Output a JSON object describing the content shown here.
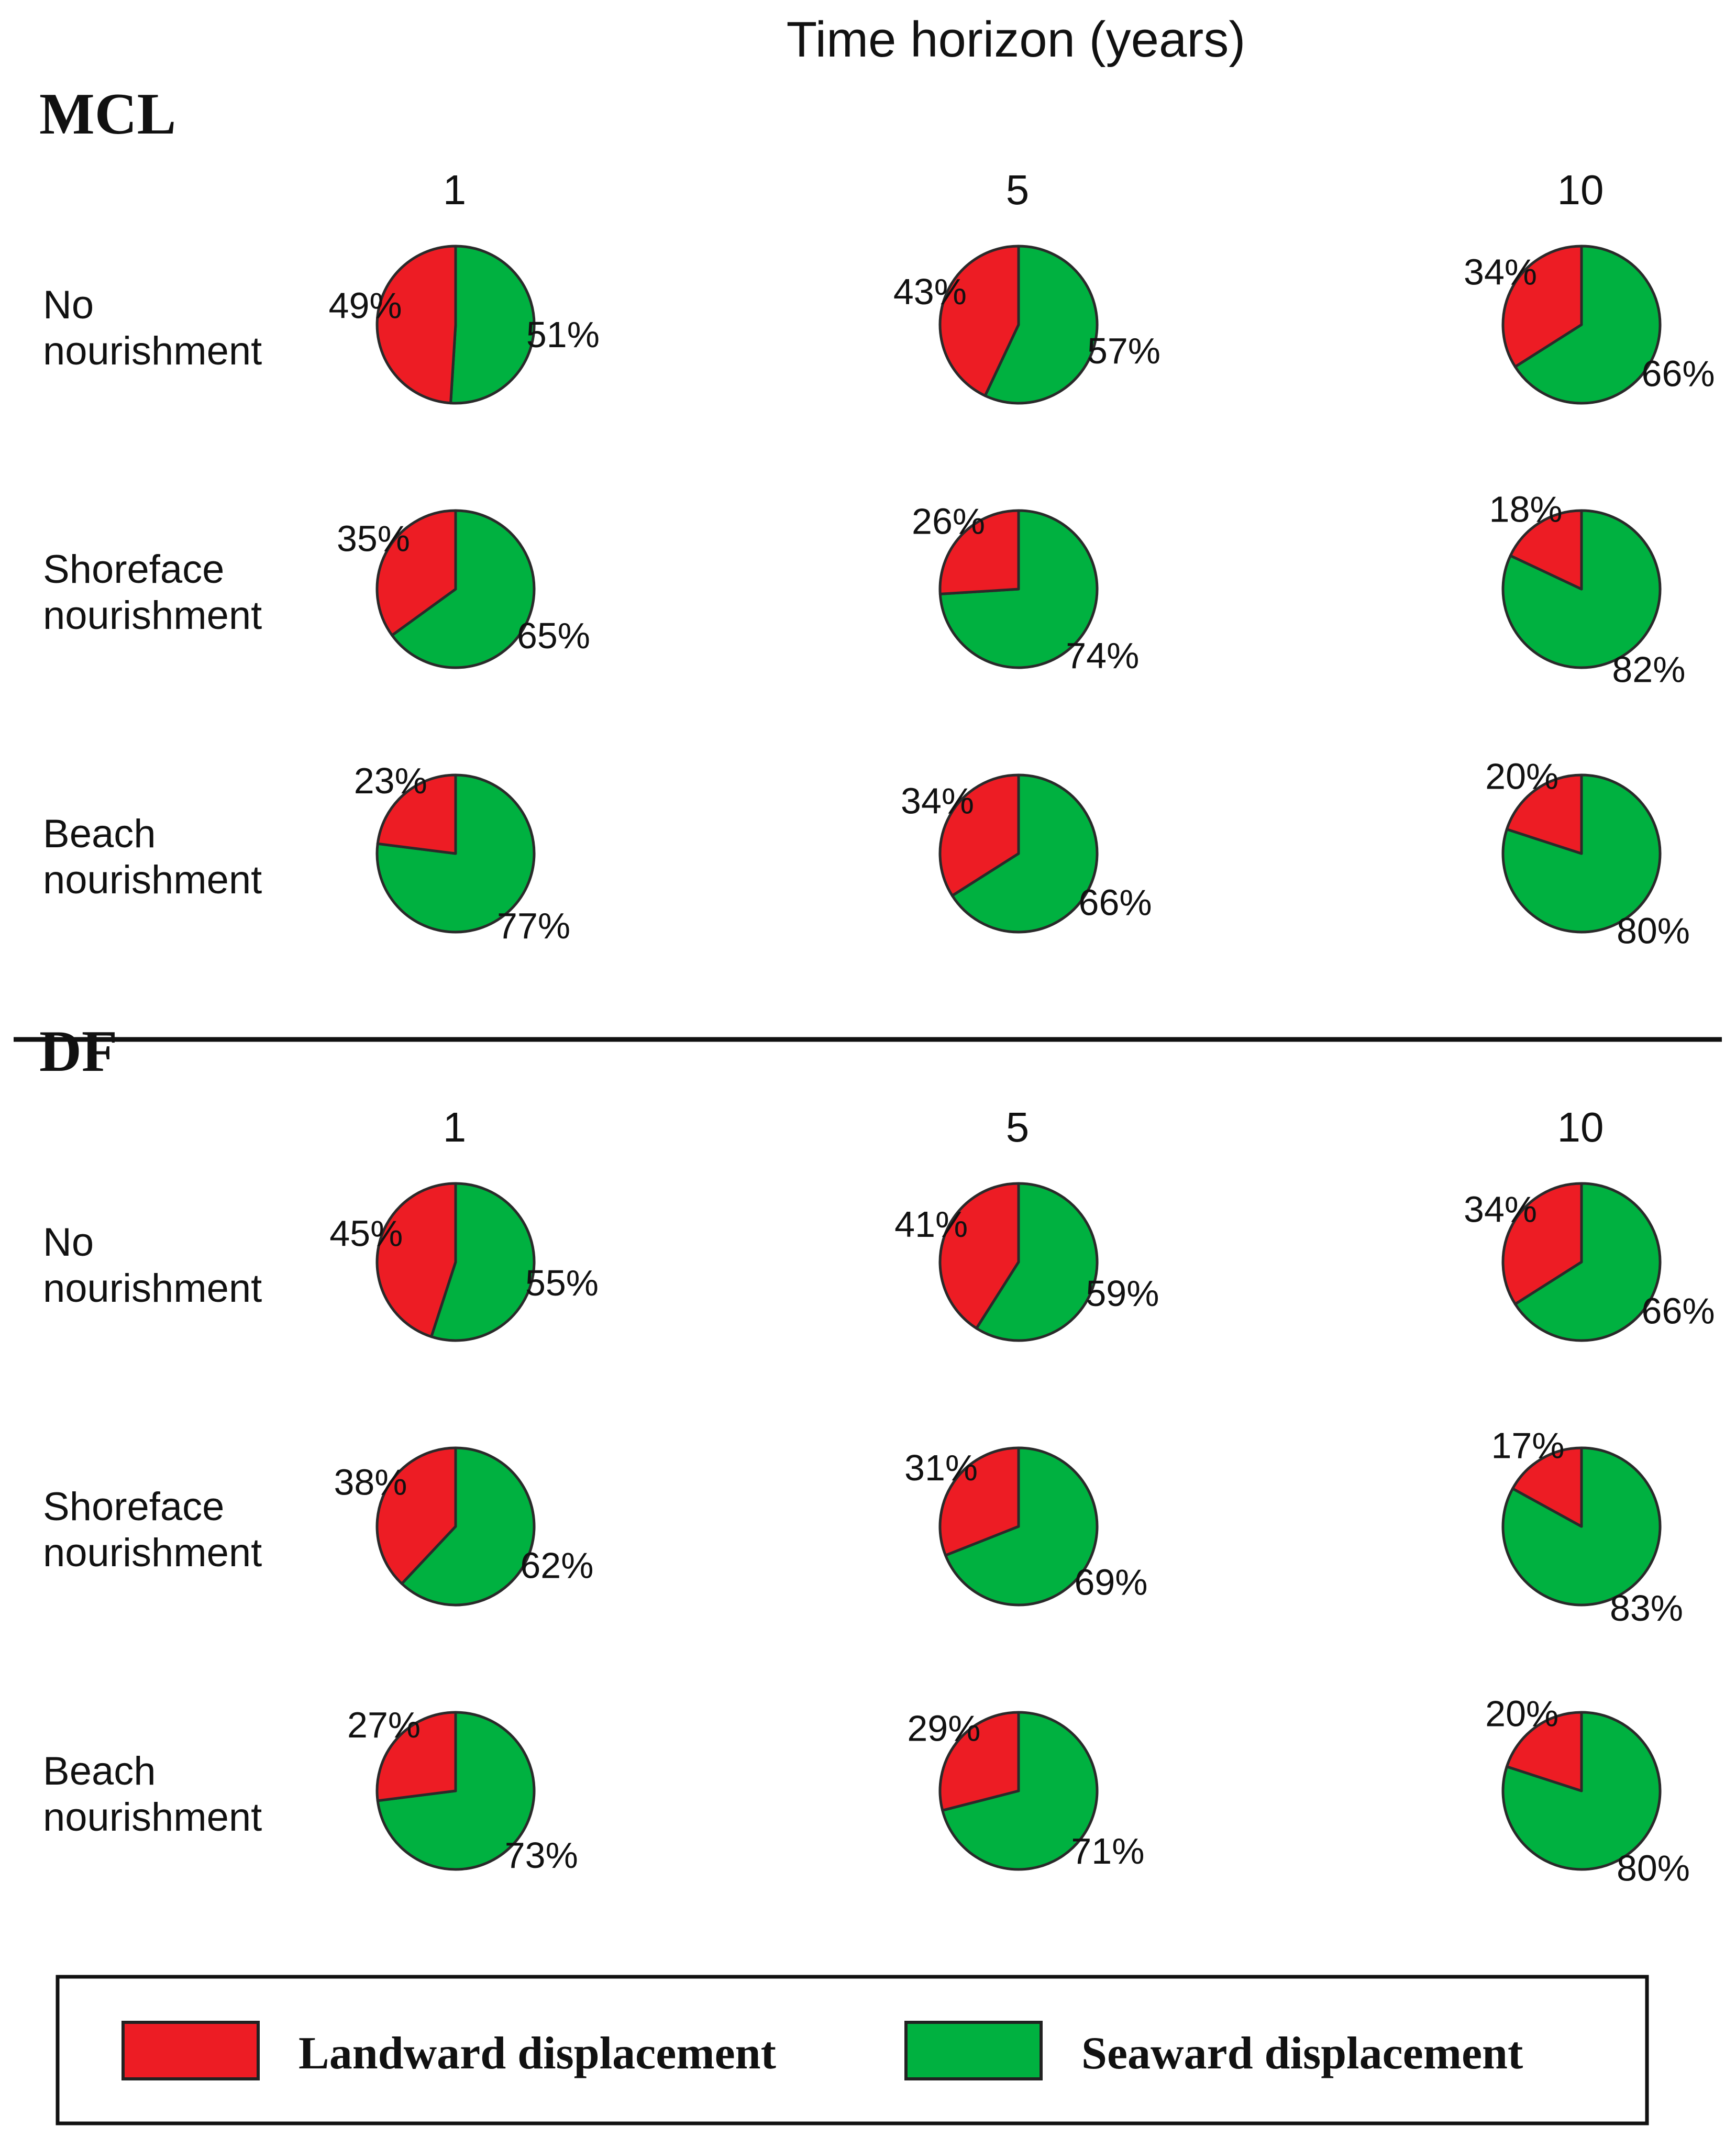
{
  "figure": {
    "header": "Time horizon (years)",
    "colors": {
      "landward": "#ed1c24",
      "seaward": "#00b140",
      "stroke": "#2a2a2a"
    }
  },
  "legend": {
    "items": [
      {
        "key": "landward",
        "label": "Landward displacement"
      },
      {
        "key": "seaward",
        "label": "Seaward displacement"
      }
    ]
  },
  "chart_data": [
    {
      "type": "pie",
      "panel": "MCL",
      "columns": [
        "1",
        "5",
        "10"
      ],
      "rows": [
        {
          "label_lines": [
            "No",
            "nourishment"
          ],
          "cells": [
            {
              "landward": 49,
              "seaward": 51,
              "landward_label": "49%",
              "seaward_label": "51%"
            },
            {
              "landward": 43,
              "seaward": 57,
              "landward_label": "43%",
              "seaward_label": "57%"
            },
            {
              "landward": 34,
              "seaward": 66,
              "landward_label": "34%",
              "seaward_label": "66%"
            }
          ]
        },
        {
          "label_lines": [
            "Shoreface",
            "nourishment"
          ],
          "cells": [
            {
              "landward": 35,
              "seaward": 65,
              "landward_label": "35%",
              "seaward_label": "65%"
            },
            {
              "landward": 26,
              "seaward": 74,
              "landward_label": "26%",
              "seaward_label": "74%"
            },
            {
              "landward": 18,
              "seaward": 82,
              "landward_label": "18%",
              "seaward_label": "82%"
            }
          ]
        },
        {
          "label_lines": [
            "Beach",
            "nourishment"
          ],
          "cells": [
            {
              "landward": 23,
              "seaward": 77,
              "landward_label": "23%",
              "seaward_label": "77%"
            },
            {
              "landward": 34,
              "seaward": 66,
              "landward_label": "34%",
              "seaward_label": "66%"
            },
            {
              "landward": 20,
              "seaward": 80,
              "landward_label": "20%",
              "seaward_label": "80%"
            }
          ]
        }
      ]
    },
    {
      "type": "pie",
      "panel": "DF",
      "columns": [
        "1",
        "5",
        "10"
      ],
      "rows": [
        {
          "label_lines": [
            "No",
            "nourishment"
          ],
          "cells": [
            {
              "landward": 45,
              "seaward": 55,
              "landward_label": "45%",
              "seaward_label": "55%"
            },
            {
              "landward": 41,
              "seaward": 59,
              "landward_label": "41%",
              "seaward_label": "59%"
            },
            {
              "landward": 34,
              "seaward": 66,
              "landward_label": "34%",
              "seaward_label": "66%"
            }
          ]
        },
        {
          "label_lines": [
            "Shoreface",
            "nourishment"
          ],
          "cells": [
            {
              "landward": 38,
              "seaward": 62,
              "landward_label": "38%",
              "seaward_label": "62%"
            },
            {
              "landward": 31,
              "seaward": 69,
              "landward_label": "31%",
              "seaward_label": "69%"
            },
            {
              "landward": 17,
              "seaward": 83,
              "landward_label": "17%",
              "seaward_label": "83%"
            }
          ]
        },
        {
          "label_lines": [
            "Beach",
            "nourishment"
          ],
          "cells": [
            {
              "landward": 27,
              "seaward": 73,
              "landward_label": "27%",
              "seaward_label": "73%"
            },
            {
              "landward": 29,
              "seaward": 71,
              "landward_label": "29%",
              "seaward_label": "71%"
            },
            {
              "landward": 20,
              "seaward": 80,
              "landward_label": "20%",
              "seaward_label": "80%"
            }
          ]
        }
      ]
    }
  ]
}
